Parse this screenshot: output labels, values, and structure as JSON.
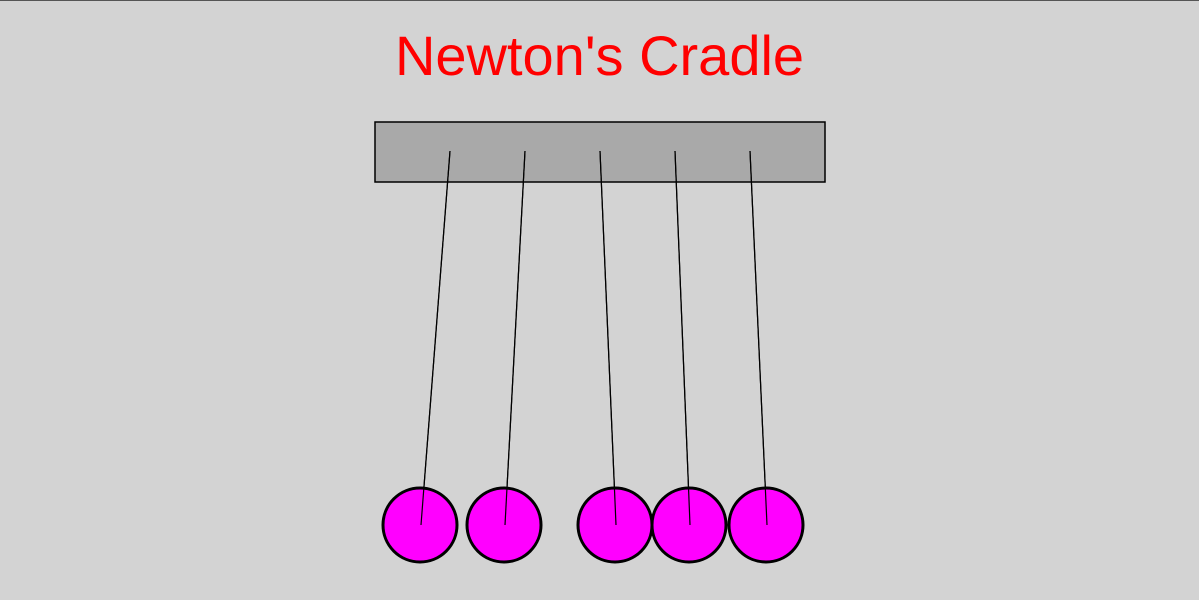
{
  "title": "Newton's Cradle",
  "colors": {
    "background": "#d3d3d3",
    "title": "#ff0000",
    "frame_fill": "#a9a9a9",
    "frame_stroke": "#000000",
    "string": "#000000",
    "ball_fill": "#ff00ff",
    "ball_stroke": "#000000"
  },
  "ball_count": 5
}
